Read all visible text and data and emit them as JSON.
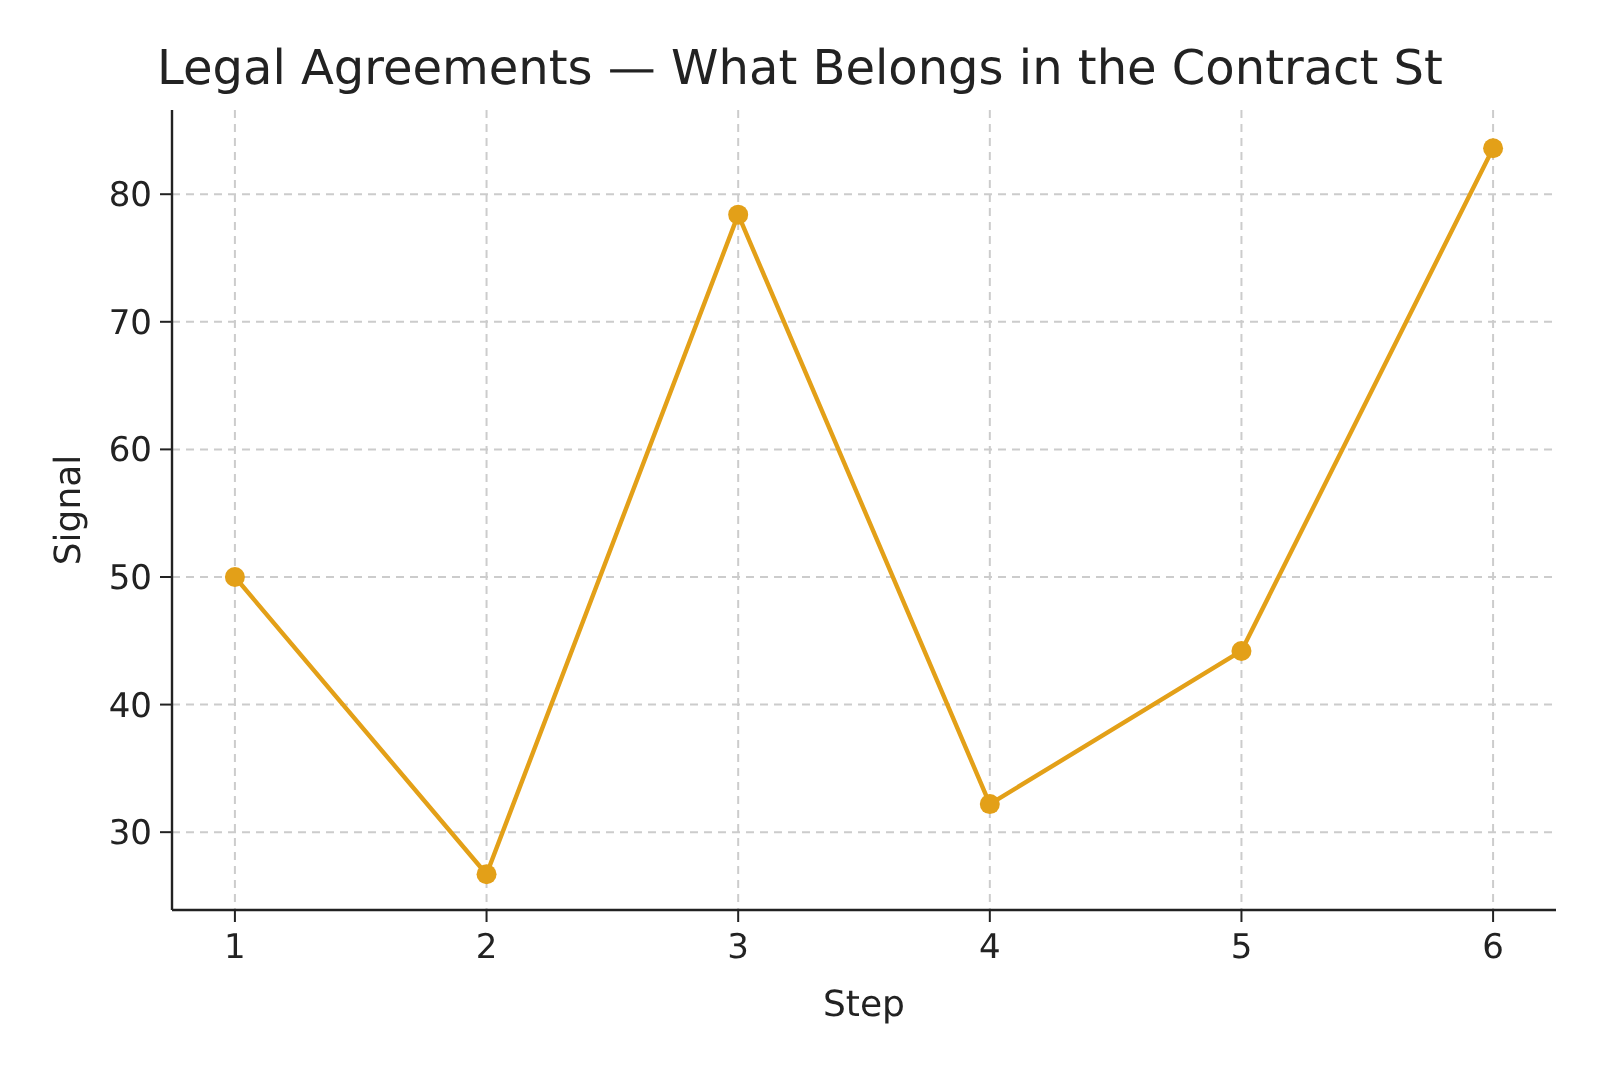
{
  "chart_data": {
    "type": "line",
    "title": "Legal Agreements — What Belongs in the Contract St",
    "xlabel": "Step",
    "ylabel": "Signal",
    "x": [
      1,
      2,
      3,
      4,
      5,
      6
    ],
    "series": [
      {
        "color": "#e3a018",
        "values": [
          50,
          26.7,
          78.4,
          32.2,
          44.2,
          83.6
        ]
      }
    ],
    "xlim": [
      0.75,
      6.25
    ],
    "xticks": [
      1,
      2,
      3,
      4,
      5,
      6
    ],
    "ylim": [
      23.9,
      86.6
    ],
    "yticks": [
      30,
      40,
      50,
      60,
      70,
      80
    ],
    "grid": true,
    "marker": "circle",
    "line_style": "solid"
  }
}
